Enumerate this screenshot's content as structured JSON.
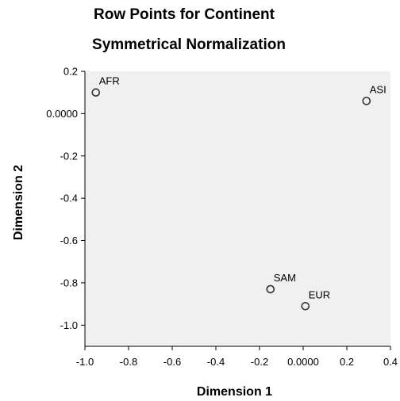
{
  "chart_data": {
    "type": "scatter",
    "title": "Row Points for Continent",
    "subtitle": "Symmetrical Normalization",
    "xlabel": "Dimension 1",
    "ylabel": "Dimension 2",
    "xlim": [
      -1.0,
      0.4
    ],
    "ylim": [
      -1.1,
      0.2
    ],
    "x_ticks": [
      -1.0,
      -0.8,
      -0.6,
      -0.4,
      -0.2,
      0.0,
      0.2,
      0.4
    ],
    "x_tick_labels": [
      "-1.0",
      "-0.8",
      "-0.6",
      "-0.4",
      "-0.2",
      "0.0000",
      "0.2",
      "0.4"
    ],
    "y_ticks": [
      0.2,
      0.0,
      -0.2,
      -0.4,
      -0.6,
      -0.8,
      -1.0
    ],
    "y_tick_labels": [
      "0.2",
      "0.0000",
      "-0.2",
      "-0.4",
      "-0.6",
      "-0.8",
      "-1.0"
    ],
    "grid": false,
    "legend": "none",
    "marker": "open-circle",
    "points": [
      {
        "label": "AFR",
        "x": -0.95,
        "y": 0.1
      },
      {
        "label": "ASI",
        "x": 0.29,
        "y": 0.06
      },
      {
        "label": "SAM",
        "x": -0.15,
        "y": -0.83
      },
      {
        "label": "EUR",
        "x": 0.01,
        "y": -0.91
      }
    ],
    "colors": {
      "plot_background": "#f0f0f0",
      "marker_stroke": "#333333",
      "axis": "#000000"
    }
  }
}
